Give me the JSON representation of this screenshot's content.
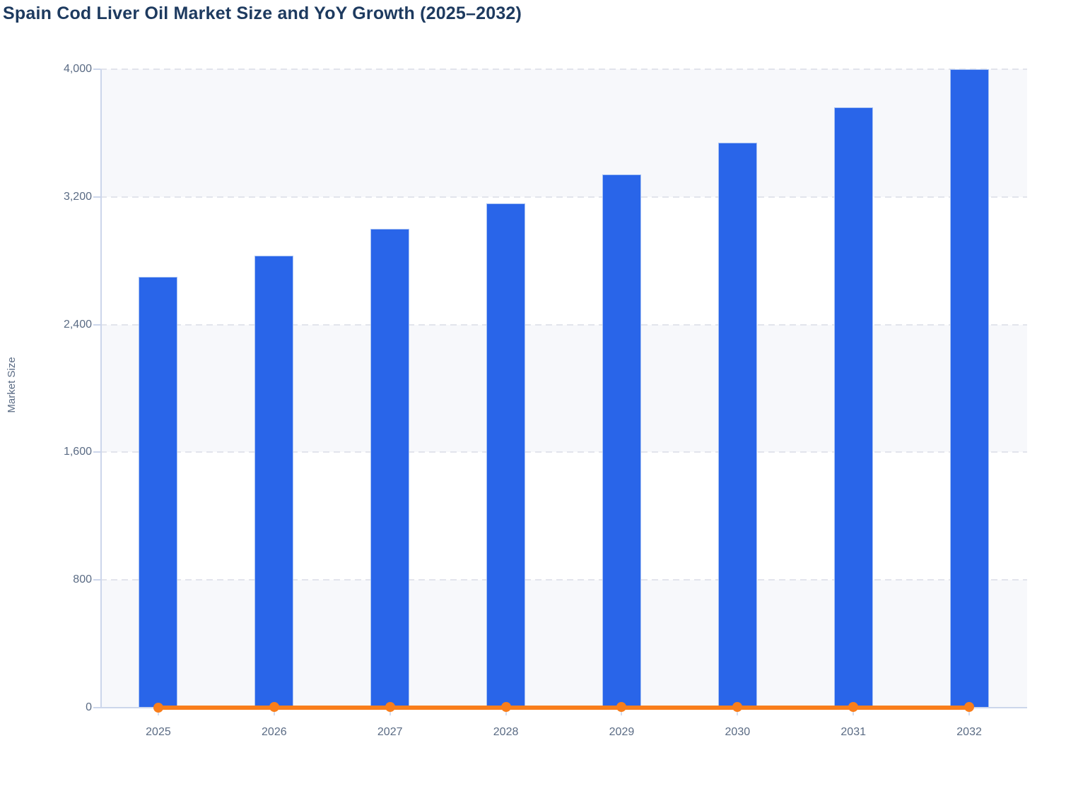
{
  "chart_data": {
    "type": "bar",
    "title": "Spain Cod Liver Oil Market Size and YoY Growth (2025–2032)",
    "xlabel": "",
    "ylabel": "Market Size",
    "categories": [
      "2025",
      "2026",
      "2027",
      "2028",
      "2029",
      "2030",
      "2031",
      "2032"
    ],
    "series": [
      {
        "name": "Market Size",
        "type": "bar",
        "color": "#2965e9",
        "values": [
          2700,
          2830,
          3000,
          3160,
          3340,
          3540,
          3760,
          4000
        ]
      },
      {
        "name": "YoY Growth",
        "type": "line",
        "color": "#f97e1b",
        "values": [
          0,
          4.8,
          6.0,
          5.3,
          5.7,
          6.0,
          6.2,
          6.4
        ]
      }
    ],
    "ylim": [
      0,
      4000
    ],
    "yticks": [
      {
        "value": 0,
        "label": "0"
      },
      {
        "value": 800,
        "label": "800"
      },
      {
        "value": 1600,
        "label": "1,600"
      },
      {
        "value": 2400,
        "label": "2,400"
      },
      {
        "value": 3200,
        "label": "3,200"
      },
      {
        "value": 4000,
        "label": "4,000"
      }
    ],
    "grid": {
      "horizontal": true,
      "style": "dashed",
      "alternate_bands": true
    },
    "legend": "none"
  },
  "colors": {
    "bar_fill": "#2965e9",
    "bar_border": "#a9c3f3",
    "line_orange": "#f97e1b",
    "band_shade": "#f7f8fb",
    "band_light": "#ffffff",
    "axis_line": "#ccd6eb",
    "grid_dash": "#e2e4ec",
    "tick_label": "#5a6b84",
    "title_text": "#1d3a5f"
  }
}
